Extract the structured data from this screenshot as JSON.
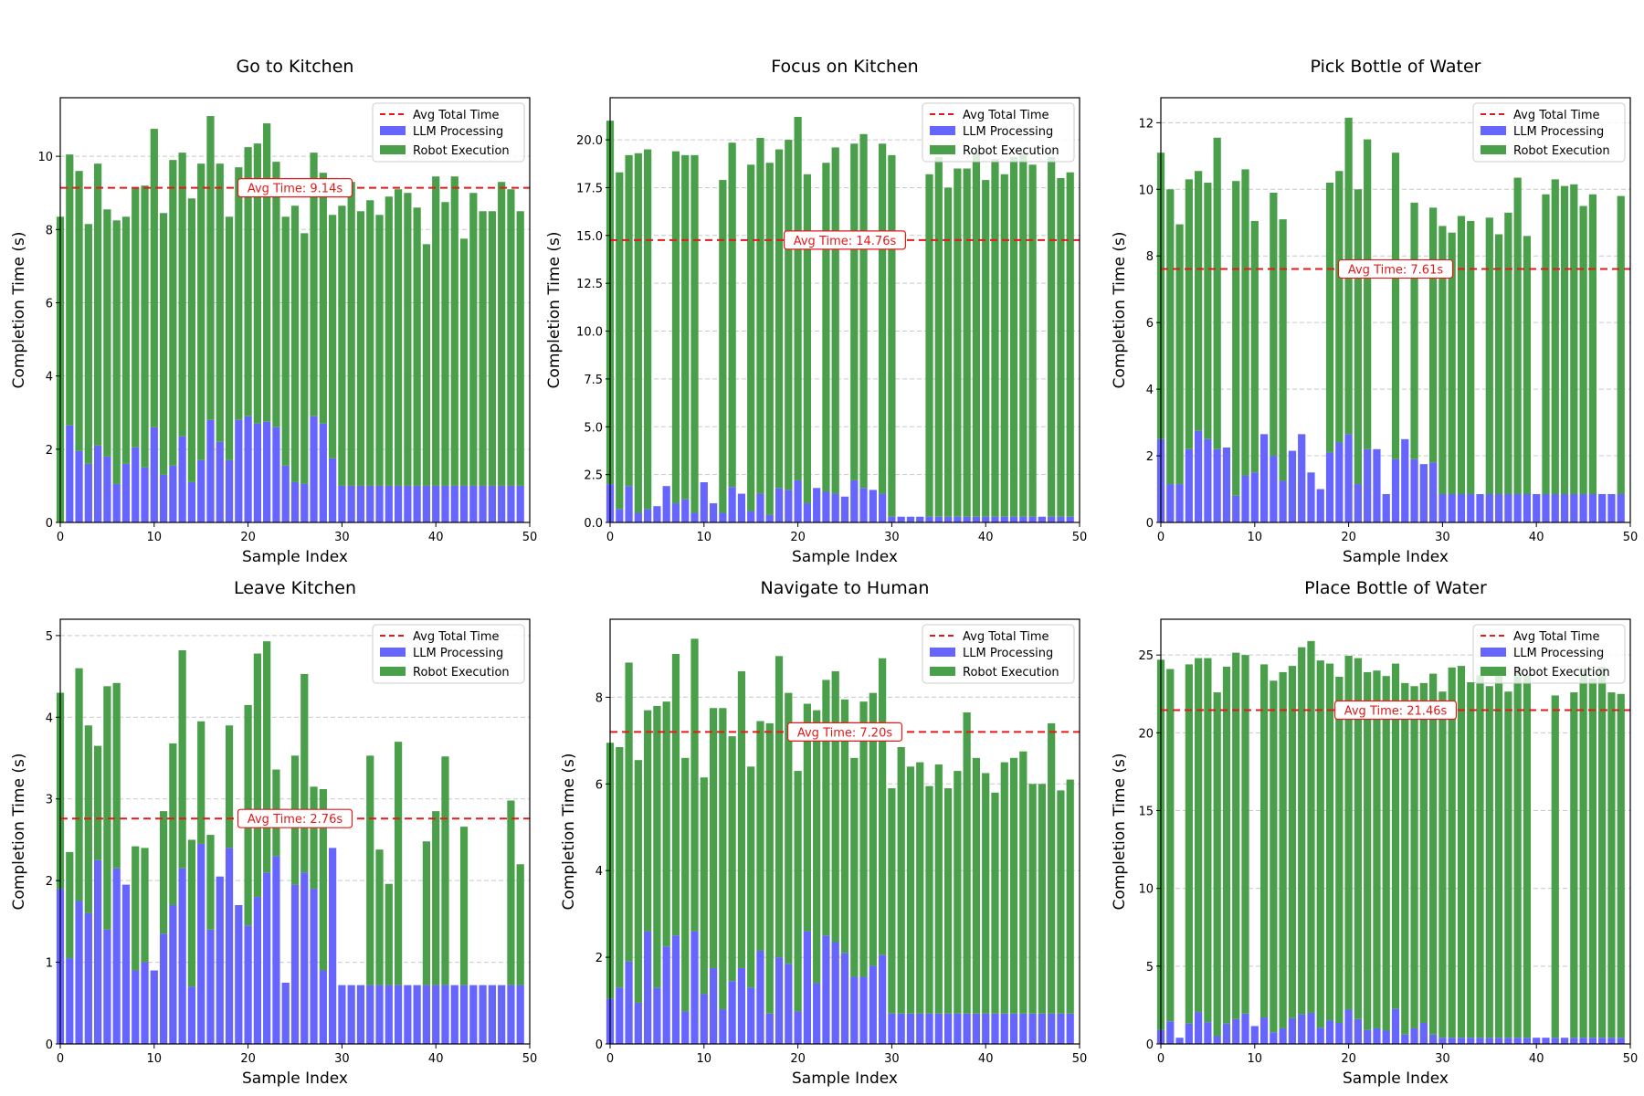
{
  "chart_data": [
    {
      "type": "bar",
      "stacked": true,
      "title": "Go to Kitchen",
      "xlabel": "Sample Index",
      "ylabel": "Completion Time (s)",
      "xlim": [
        0,
        50
      ],
      "ylim": [
        0,
        11.6
      ],
      "xticks": [
        0,
        10,
        20,
        30,
        40,
        50
      ],
      "yticks": [
        0,
        2,
        4,
        6,
        8,
        10
      ],
      "ytick_labels": [
        "0",
        "2",
        "4",
        "6",
        "8",
        "10"
      ],
      "grid": "y-dashed",
      "legend": {
        "position": "top-right",
        "entries": [
          "Avg Total Time",
          "LLM Processing",
          "Robot Execution"
        ]
      },
      "avg_line": {
        "value": 9.14,
        "label": "Avg Time: 9.14s",
        "label_x": 25
      },
      "series": [
        {
          "name": "LLM Processing",
          "color": "#6666ff",
          "values": [
            0,
            2.65,
            1.95,
            1.6,
            2.1,
            1.8,
            1.05,
            1.6,
            2.05,
            1.5,
            2.6,
            1.3,
            1.55,
            2.35,
            1.1,
            1.7,
            2.8,
            2.2,
            1.7,
            2.8,
            2.9,
            2.7,
            2.75,
            2.6,
            1.55,
            1.1,
            1.05,
            2.9,
            2.7,
            1.75,
            1.0,
            1.0,
            1.0,
            1.0,
            1.0,
            1.0,
            1.0,
            1.0,
            1.0,
            1.0,
            1.0,
            1.0,
            1.0,
            1.0,
            1.0,
            1.0,
            1.0,
            1.0,
            1.0,
            1.0
          ]
        },
        {
          "name": "Robot Execution",
          "color": "#4a9f4a",
          "values": [
            8.35,
            7.4,
            7.65,
            6.55,
            7.7,
            6.75,
            7.2,
            6.75,
            7.1,
            7.7,
            8.15,
            7.15,
            8.35,
            7.75,
            7.75,
            8.1,
            8.3,
            7.6,
            6.65,
            6.9,
            7.35,
            7.65,
            8.15,
            7.25,
            6.8,
            7.55,
            6.85,
            7.2,
            6.85,
            6.65,
            7.65,
            8.3,
            7.5,
            7.8,
            7.4,
            7.9,
            8.1,
            8.0,
            7.6,
            6.6,
            8.45,
            7.75,
            8.45,
            6.75,
            8.0,
            7.5,
            7.5,
            8.3,
            8.1,
            7.5
          ]
        }
      ]
    },
    {
      "type": "bar",
      "stacked": true,
      "title": "Focus on Kitchen",
      "xlabel": "Sample Index",
      "ylabel": "Completion Time (s)",
      "xlim": [
        0,
        50
      ],
      "ylim": [
        0,
        22.2
      ],
      "xticks": [
        0,
        10,
        20,
        30,
        40,
        50
      ],
      "yticks": [
        0,
        2.5,
        5,
        7.5,
        10,
        12.5,
        15,
        17.5,
        20
      ],
      "ytick_labels": [
        "0.0",
        "2.5",
        "5.0",
        "7.5",
        "10.0",
        "12.5",
        "15.0",
        "17.5",
        "20.0"
      ],
      "grid": "y-dashed",
      "legend": {
        "position": "top-right",
        "entries": [
          "Avg Total Time",
          "LLM Processing",
          "Robot Execution"
        ]
      },
      "avg_line": {
        "value": 14.76,
        "label": "Avg Time: 14.76s",
        "label_x": 25
      },
      "series": [
        {
          "name": "LLM Processing",
          "color": "#6666ff",
          "values": [
            2.0,
            0.7,
            1.9,
            0.5,
            0.7,
            0.85,
            1.9,
            1.0,
            1.2,
            0.5,
            2.1,
            1.0,
            0.5,
            1.85,
            1.5,
            0.6,
            1.5,
            0.4,
            1.8,
            1.7,
            2.2,
            1.0,
            1.8,
            1.6,
            1.5,
            1.35,
            2.2,
            1.8,
            1.7,
            1.5,
            0.3,
            0.3,
            0.3,
            0.3,
            0.3,
            0.3,
            0.3,
            0.3,
            0.3,
            0.3,
            0.3,
            0.3,
            0.3,
            0.3,
            0.3,
            0.3,
            0.3,
            0.3,
            0.3,
            0.3
          ]
        },
        {
          "name": "Robot Execution",
          "color": "#4a9f4a",
          "values": [
            19.0,
            17.6,
            17.3,
            18.8,
            18.8,
            0,
            0,
            18.4,
            18.0,
            18.7,
            0,
            0,
            17.4,
            18.0,
            0,
            18.1,
            18.6,
            18.4,
            17.7,
            18.3,
            19.0,
            17.2,
            0,
            17.2,
            18.1,
            0,
            17.6,
            18.5,
            0,
            18.3,
            18.9,
            0,
            0,
            0,
            17.9,
            18.8,
            17.2,
            18.2,
            18.2,
            19.0,
            17.6,
            18.7,
            17.9,
            18.8,
            19.0,
            18.4,
            0,
            18.8,
            17.7,
            18.0
          ]
        }
      ]
    },
    {
      "type": "bar",
      "stacked": true,
      "title": "Pick Bottle of Water",
      "xlabel": "Sample Index",
      "ylabel": "Completion Time (s)",
      "xlim": [
        0,
        50
      ],
      "ylim": [
        0,
        12.75
      ],
      "xticks": [
        0,
        10,
        20,
        30,
        40,
        50
      ],
      "yticks": [
        0,
        2,
        4,
        6,
        8,
        10,
        12
      ],
      "ytick_labels": [
        "0",
        "2",
        "4",
        "6",
        "8",
        "10",
        "12"
      ],
      "grid": "y-dashed",
      "legend": {
        "position": "top-right",
        "entries": [
          "Avg Total Time",
          "LLM Processing",
          "Robot Execution"
        ]
      },
      "avg_line": {
        "value": 7.61,
        "label": "Avg Time: 7.61s",
        "label_x": 25
      },
      "series": [
        {
          "name": "LLM Processing",
          "color": "#6666ff",
          "values": [
            2.5,
            1.15,
            1.15,
            2.2,
            2.75,
            2.5,
            2.2,
            2.25,
            0.8,
            1.4,
            1.5,
            2.65,
            2.0,
            1.25,
            2.15,
            2.65,
            1.5,
            1.0,
            2.1,
            2.4,
            2.65,
            1.15,
            2.2,
            2.2,
            0.85,
            1.9,
            2.5,
            1.9,
            1.75,
            1.8,
            0.85,
            0.85,
            0.85,
            0.85,
            0.85,
            0.85,
            0.85,
            0.85,
            0.85,
            0.85,
            0.85,
            0.85,
            0.85,
            0.85,
            0.85,
            0.85,
            0.85,
            0.85,
            0.85,
            0.85
          ]
        },
        {
          "name": "Robot Execution",
          "color": "#4a9f4a",
          "values": [
            8.6,
            8.85,
            7.8,
            8.1,
            7.8,
            7.7,
            9.35,
            0,
            9.45,
            9.2,
            7.55,
            0,
            7.9,
            7.85,
            0,
            0,
            0,
            0,
            8.1,
            8.15,
            9.5,
            8.85,
            9.3,
            0,
            0,
            9.2,
            0,
            7.7,
            0,
            7.65,
            8.05,
            7.85,
            8.35,
            8.2,
            0,
            8.3,
            7.8,
            8.45,
            9.5,
            7.75,
            0,
            9.0,
            9.45,
            9.25,
            9.3,
            8.65,
            9.0,
            0,
            0,
            8.95
          ]
        }
      ]
    },
    {
      "type": "bar",
      "stacked": true,
      "title": "Leave Kitchen",
      "xlabel": "Sample Index",
      "ylabel": "Completion Time (s)",
      "xlim": [
        0,
        50
      ],
      "ylim": [
        0,
        5.2
      ],
      "xticks": [
        0,
        10,
        20,
        30,
        40,
        50
      ],
      "yticks": [
        0,
        1,
        2,
        3,
        4,
        5
      ],
      "ytick_labels": [
        "0",
        "1",
        "2",
        "3",
        "4",
        "5"
      ],
      "grid": "y-dashed",
      "legend": {
        "position": "top-right",
        "entries": [
          "Avg Total Time",
          "LLM Processing",
          "Robot Execution"
        ]
      },
      "avg_line": {
        "value": 2.76,
        "label": "Avg Time: 2.76s",
        "label_x": 25
      },
      "series": [
        {
          "name": "LLM Processing",
          "color": "#6666ff",
          "values": [
            1.9,
            1.05,
            1.75,
            1.6,
            2.25,
            1.4,
            2.15,
            1.95,
            0.9,
            1.0,
            0.9,
            1.35,
            1.7,
            2.15,
            0.7,
            2.45,
            1.4,
            2.05,
            2.4,
            1.7,
            1.45,
            1.8,
            2.1,
            2.3,
            0.75,
            1.95,
            2.1,
            1.9,
            0.9,
            2.4,
            0.72,
            0.72,
            0.72,
            0.72,
            0.72,
            0.72,
            0.72,
            0.72,
            0.72,
            0.72,
            0.72,
            0.72,
            0.72,
            0.72,
            0.72,
            0.72,
            0.72,
            0.72,
            0.72,
            0.72
          ]
        },
        {
          "name": "Robot Execution",
          "color": "#4a9f4a",
          "values": [
            2.4,
            1.3,
            2.85,
            2.3,
            1.4,
            2.98,
            2.27,
            0,
            1.52,
            1.4,
            0,
            1.5,
            1.98,
            2.67,
            1.8,
            1.5,
            1.16,
            0,
            1.5,
            0,
            2.7,
            2.98,
            2.83,
            1.06,
            0,
            1.58,
            2.43,
            1.25,
            2.22,
            0,
            0,
            0,
            0,
            2.81,
            1.66,
            1.24,
            2.98,
            0,
            0,
            1.76,
            2.13,
            2.8,
            0,
            1.94,
            0,
            0,
            0,
            0,
            2.26,
            1.48
          ]
        }
      ]
    },
    {
      "type": "bar",
      "stacked": true,
      "title": "Navigate to Human",
      "xlabel": "Sample Index",
      "ylabel": "Completion Time (s)",
      "xlim": [
        0,
        50
      ],
      "ylim": [
        0,
        9.8
      ],
      "xticks": [
        0,
        10,
        20,
        30,
        40,
        50
      ],
      "yticks": [
        0,
        2,
        4,
        6,
        8
      ],
      "ytick_labels": [
        "0",
        "2",
        "4",
        "6",
        "8"
      ],
      "grid": "y-dashed",
      "legend": {
        "position": "top-right",
        "entries": [
          "Avg Total Time",
          "LLM Processing",
          "Robot Execution"
        ]
      },
      "avg_line": {
        "value": 7.2,
        "label": "Avg Time: 7.20s",
        "label_x": 25
      },
      "series": [
        {
          "name": "LLM Processing",
          "color": "#6666ff",
          "values": [
            1.05,
            1.3,
            1.9,
            0.95,
            2.6,
            1.3,
            2.25,
            2.5,
            0.75,
            2.6,
            1.15,
            1.75,
            0.8,
            1.45,
            1.75,
            1.3,
            2.15,
            0.7,
            2.0,
            1.85,
            0.75,
            2.6,
            1.4,
            2.5,
            2.35,
            2.1,
            1.55,
            1.55,
            1.8,
            2.05,
            0.7,
            0.7,
            0.7,
            0.7,
            0.7,
            0.7,
            0.7,
            0.7,
            0.7,
            0.7,
            0.7,
            0.7,
            0.7,
            0.7,
            0.7,
            0.7,
            0.7,
            0.7,
            0.7,
            0.7
          ]
        },
        {
          "name": "Robot Execution",
          "color": "#4a9f4a",
          "values": [
            5.9,
            5.55,
            6.9,
            5.6,
            5.1,
            6.5,
            5.65,
            6.5,
            5.85,
            6.75,
            5.0,
            6.0,
            6.95,
            5.65,
            6.85,
            5.1,
            5.3,
            6.7,
            6.95,
            6.25,
            5.55,
            5.25,
            6.3,
            5.9,
            6.25,
            5.85,
            5.05,
            6.35,
            6.3,
            6.85,
            5.2,
            6.15,
            5.7,
            5.8,
            5.25,
            5.75,
            5.2,
            5.6,
            6.95,
            5.9,
            5.55,
            5.1,
            5.8,
            5.9,
            6.05,
            5.3,
            5.3,
            6.7,
            5.15,
            5.4
          ]
        }
      ]
    },
    {
      "type": "bar",
      "stacked": true,
      "title": "Place Bottle of Water",
      "xlabel": "Sample Index",
      "ylabel": "Completion Time (s)",
      "xlim": [
        0,
        50
      ],
      "ylim": [
        0,
        27.3
      ],
      "xticks": [
        0,
        10,
        20,
        30,
        40,
        50
      ],
      "yticks": [
        0,
        5,
        10,
        15,
        20,
        25
      ],
      "ytick_labels": [
        "0",
        "5",
        "10",
        "15",
        "20",
        "25"
      ],
      "grid": "y-dashed",
      "legend": {
        "position": "top-right",
        "entries": [
          "Avg Total Time",
          "LLM Processing",
          "Robot Execution"
        ]
      },
      "avg_line": {
        "value": 21.46,
        "label": "Avg Time: 21.46s",
        "label_x": 25
      },
      "series": [
        {
          "name": "LLM Processing",
          "color": "#6666ff",
          "values": [
            0.9,
            1.45,
            0.4,
            1.3,
            2.05,
            1.4,
            0.5,
            1.3,
            1.6,
            1.95,
            1.15,
            1.7,
            0.75,
            1.0,
            1.65,
            1.9,
            2.0,
            1.05,
            1.5,
            1.35,
            2.2,
            1.6,
            0.9,
            1.0,
            0.85,
            2.25,
            0.6,
            1.0,
            1.35,
            0.6,
            0.4,
            0.4,
            0.4,
            0.4,
            0.4,
            0.4,
            0.4,
            0.4,
            0.4,
            0.4,
            0.4,
            0.4,
            0.4,
            0.4,
            0.4,
            0.4,
            0.4,
            0.4,
            0.4,
            0.4
          ]
        },
        {
          "name": "Robot Execution",
          "color": "#4a9f4a",
          "values": [
            23.8,
            22.65,
            0,
            23.1,
            22.75,
            23.4,
            22.1,
            22.95,
            23.55,
            23.05,
            0,
            22.7,
            22.6,
            22.9,
            22.65,
            23.6,
            23.9,
            23.6,
            22.95,
            22.25,
            22.75,
            23.2,
            23.0,
            23.0,
            22.8,
            22.2,
            22.6,
            22.0,
            21.85,
            23.2,
            22.25,
            23.8,
            23.9,
            22.85,
            23.3,
            22.6,
            23.45,
            22.25,
            23.75,
            23.3,
            0,
            0,
            22.0,
            0,
            22.2,
            23.75,
            23.1,
            23.85,
            22.2,
            22.1
          ]
        }
      ]
    }
  ]
}
